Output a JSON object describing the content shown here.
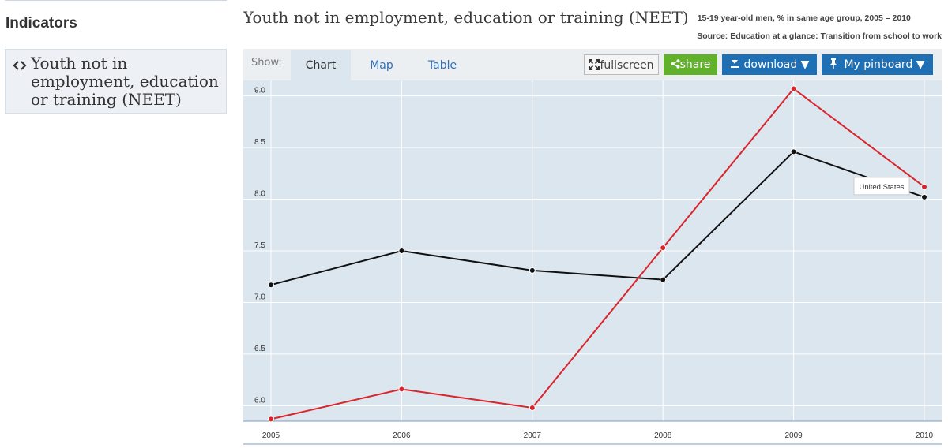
{
  "sidebar": {
    "title": "Indicators",
    "items": [
      {
        "label": "Youth not in employment, education or training (NEET)"
      }
    ]
  },
  "header": {
    "title": "Youth not in employment, education or training (NEET)",
    "subtitle": "15-19 year-old men, % in same age group, 2005 – 2010",
    "source": "Source: Education at a glance: Transition from school to work"
  },
  "toolbar": {
    "show_label": "Show:",
    "tabs": [
      {
        "label": "Chart",
        "active": true
      },
      {
        "label": "Map",
        "active": false
      },
      {
        "label": "Table",
        "active": false
      }
    ],
    "fullscreen_label": "fullscreen",
    "share_label": "share",
    "download_label": "download ▼",
    "pinboard_label": "My pinboard ▼"
  },
  "colors": {
    "plot_background": "#dce6ef",
    "series_black": "#111111",
    "series_red": "#d9252b",
    "button_green": "#62b12b",
    "button_blue": "#1f6fb4"
  },
  "chart_data": {
    "type": "line",
    "x": [
      2005,
      2006,
      2007,
      2008,
      2009,
      2010
    ],
    "ylim": [
      5.85,
      9.15
    ],
    "yticks": [
      6.0,
      6.5,
      7.0,
      7.5,
      8.0,
      8.5,
      9.0
    ],
    "ytick_labels": [
      "6.0",
      "6.5",
      "7.0",
      "7.5",
      "8.0",
      "8.5",
      "9.0"
    ],
    "xtick_labels": [
      "2005",
      "2006",
      "2007",
      "2008",
      "2009",
      "2010"
    ],
    "grid": true,
    "series": [
      {
        "color": "#111111",
        "values": [
          7.17,
          7.5,
          7.31,
          7.22,
          8.46,
          8.02
        ]
      },
      {
        "name": "United States",
        "color": "#d9252b",
        "values": [
          5.87,
          6.16,
          5.98,
          7.53,
          9.07,
          8.12
        ]
      }
    ],
    "tooltip": {
      "series": "United States",
      "text": "United States"
    }
  }
}
